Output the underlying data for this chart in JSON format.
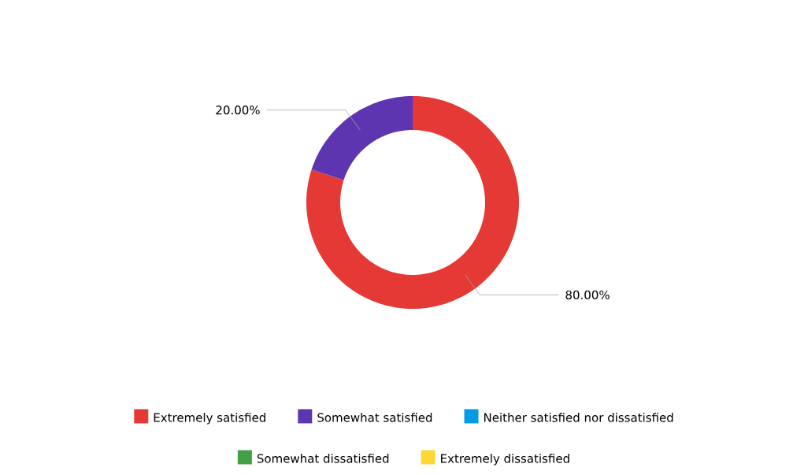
{
  "chart_data": {
    "type": "donut",
    "categories": [
      "Extremely satisfied",
      "Somewhat satisfied",
      "Neither satisfied nor dissatisfied",
      "Somewhat dissatisfied",
      "Extremely dissatisfied"
    ],
    "values": [
      80,
      20,
      0,
      0,
      0
    ],
    "colors": [
      "#e53935",
      "#5e35b1",
      "#039be5",
      "#43a047",
      "#fdd835"
    ],
    "value_labels": [
      "80.00%",
      "20.00%",
      null,
      null,
      null
    ],
    "legend": "bottom"
  }
}
